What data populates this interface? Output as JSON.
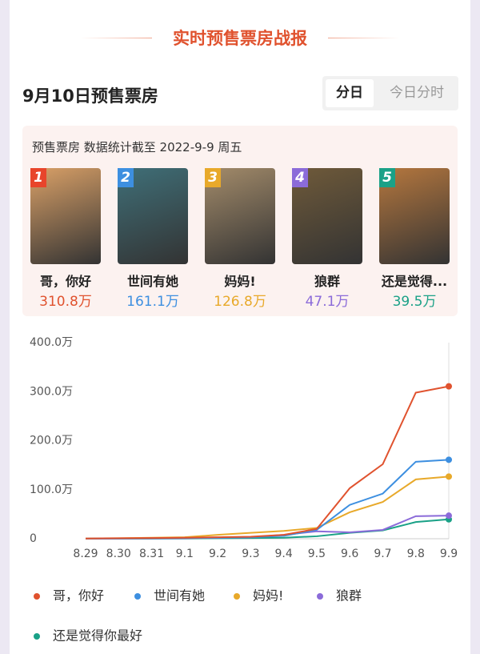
{
  "header": {
    "title": "实时预售票房战报"
  },
  "section": {
    "title": "9月10日预售票房",
    "tabs": [
      "分日",
      "今日分时"
    ]
  },
  "info": "预售票房 数据统计截至 2022-9-9 周五",
  "movies": [
    {
      "rank": "1",
      "name": "哥，你好",
      "value": "310.8万"
    },
    {
      "rank": "2",
      "name": "世间有她",
      "value": "161.1万"
    },
    {
      "rank": "3",
      "name": "妈妈!",
      "value": "126.8万"
    },
    {
      "rank": "4",
      "name": "狼群",
      "value": "47.1万"
    },
    {
      "rank": "5",
      "name": "还是觉得...",
      "value": "39.5万"
    }
  ],
  "chart_data": {
    "type": "line",
    "categories": [
      "8.29",
      "8.30",
      "8.31",
      "9.1",
      "9.2",
      "9.3",
      "9.4",
      "9.5",
      "9.6",
      "9.7",
      "9.8",
      "9.9"
    ],
    "ylim": [
      0,
      400
    ],
    "yticks": [
      0,
      {
        "value": 100,
        "label": "100.0万"
      },
      {
        "value": 200,
        "label": "200.0万"
      },
      {
        "value": 300,
        "label": "300.0万"
      },
      {
        "value": 400,
        "label": "400.0万"
      }
    ],
    "grid": false,
    "series": [
      {
        "name": "哥，你好",
        "color": "#e0522e",
        "values": [
          0.5,
          1,
          1.5,
          2,
          3,
          4,
          8,
          20,
          103,
          152,
          298,
          310.8
        ]
      },
      {
        "name": "世间有她",
        "color": "#3d8fe0",
        "values": [
          0.3,
          0.5,
          1,
          1.5,
          2,
          3,
          6,
          18,
          69,
          92,
          157,
          161.1
        ]
      },
      {
        "name": "妈妈!",
        "color": "#e8a92a",
        "values": [
          0.5,
          1,
          2,
          3,
          8,
          12,
          16,
          22,
          54,
          75,
          121,
          126.8
        ]
      },
      {
        "name": "狼群",
        "color": "#8b6bd9",
        "values": [
          0.2,
          0.4,
          0.6,
          1,
          2,
          3,
          8,
          15,
          13,
          18,
          46,
          47.1
        ]
      },
      {
        "name": "还是觉得你最好",
        "color": "#1aa187",
        "values": [
          0.1,
          0.2,
          0.3,
          0.5,
          1,
          1.5,
          2,
          5,
          12,
          17,
          34,
          39.5
        ]
      }
    ]
  }
}
